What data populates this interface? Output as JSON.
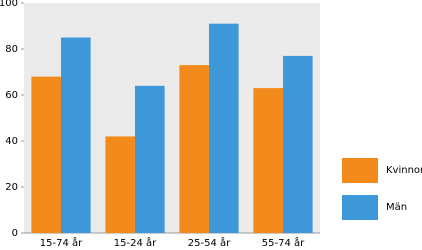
{
  "chart_data": {
    "type": "bar",
    "categories": [
      "15-74 år",
      "15-24 år",
      "25-54 år",
      "55-74 år"
    ],
    "series": [
      {
        "name": "Kvinnor",
        "color": "#f28a1c",
        "values": [
          68,
          42,
          73,
          63
        ]
      },
      {
        "name": "Män",
        "color": "#3d97d9",
        "values": [
          85,
          64,
          91,
          77
        ]
      }
    ],
    "ylim": [
      0,
      100
    ],
    "yticks": [
      0,
      20,
      40,
      60,
      80,
      100
    ],
    "grid": false,
    "legend": "right"
  }
}
